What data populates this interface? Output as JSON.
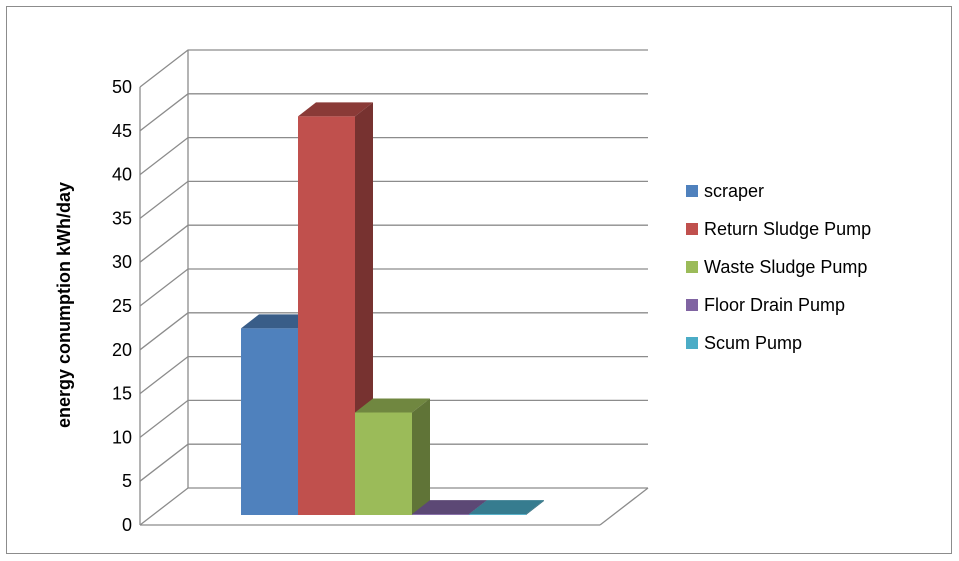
{
  "chart_data": {
    "type": "bar",
    "title": "",
    "xlabel": "",
    "ylabel": "energy conumption kWh/day",
    "ylim": [
      0,
      50
    ],
    "yticks": [
      0,
      5,
      10,
      15,
      20,
      25,
      30,
      35,
      40,
      45,
      50
    ],
    "grid": true,
    "three_d": true,
    "legend_position": "right",
    "series": [
      {
        "name": "scraper",
        "value": 21.3,
        "color": "#4f81bd"
      },
      {
        "name": "Return Sludge Pump",
        "value": 45.5,
        "color": "#c0504d"
      },
      {
        "name": "Waste Sludge Pump",
        "value": 11.7,
        "color": "#9bbb59"
      },
      {
        "name": "Floor Drain Pump",
        "value": 0.1,
        "color": "#8064a2"
      },
      {
        "name": "Scum Pump",
        "value": 0.1,
        "color": "#4bacc6"
      }
    ]
  }
}
